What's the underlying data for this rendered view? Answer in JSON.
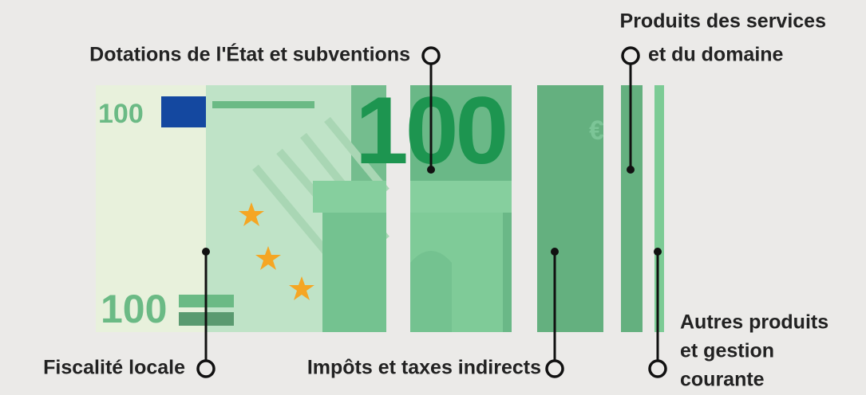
{
  "note": {
    "denomination_top": "100",
    "denomination_bottom": "100",
    "big_value": "100",
    "currency": "€"
  },
  "labels": [
    {
      "lines": [
        "Fiscalité locale"
      ]
    },
    {
      "lines": [
        "Dotations de l'État et subventions"
      ]
    },
    {
      "lines": [
        "Impôts et taxes indirects"
      ]
    },
    {
      "lines": [
        "Produits des services",
        "et du domaine"
      ]
    },
    {
      "lines": [
        "Autres produits",
        "et gestion",
        "courante"
      ]
    }
  ]
}
